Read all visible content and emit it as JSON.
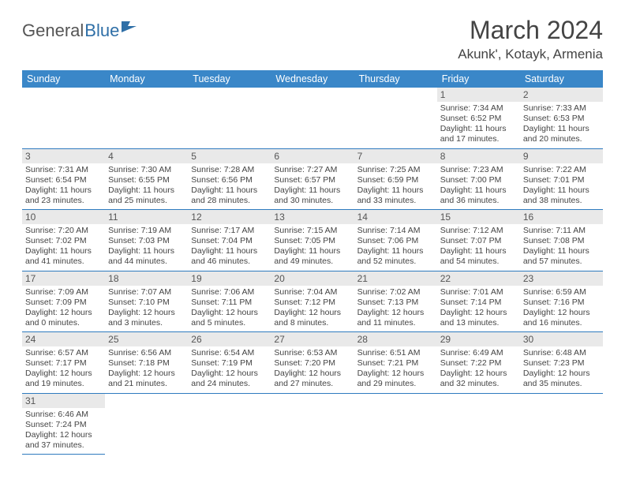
{
  "brand": {
    "general": "General",
    "blue": "Blue"
  },
  "title": "March 2024",
  "location": "Akunk', Kotayk, Armenia",
  "colors": {
    "header_bg": "#3a87c8",
    "header_text": "#ffffff",
    "row_border": "#2f7bbf",
    "day_strip": "#e9e9e9",
    "text": "#444444",
    "brand_gray": "#555555",
    "brand_blue": "#2f6fa7"
  },
  "weekdays": [
    "Sunday",
    "Monday",
    "Tuesday",
    "Wednesday",
    "Thursday",
    "Friday",
    "Saturday"
  ],
  "weeks": [
    [
      null,
      null,
      null,
      null,
      null,
      {
        "n": "1",
        "sr": "Sunrise: 7:34 AM",
        "ss": "Sunset: 6:52 PM",
        "dl1": "Daylight: 11 hours",
        "dl2": "and 17 minutes."
      },
      {
        "n": "2",
        "sr": "Sunrise: 7:33 AM",
        "ss": "Sunset: 6:53 PM",
        "dl1": "Daylight: 11 hours",
        "dl2": "and 20 minutes."
      }
    ],
    [
      {
        "n": "3",
        "sr": "Sunrise: 7:31 AM",
        "ss": "Sunset: 6:54 PM",
        "dl1": "Daylight: 11 hours",
        "dl2": "and 23 minutes."
      },
      {
        "n": "4",
        "sr": "Sunrise: 7:30 AM",
        "ss": "Sunset: 6:55 PM",
        "dl1": "Daylight: 11 hours",
        "dl2": "and 25 minutes."
      },
      {
        "n": "5",
        "sr": "Sunrise: 7:28 AM",
        "ss": "Sunset: 6:56 PM",
        "dl1": "Daylight: 11 hours",
        "dl2": "and 28 minutes."
      },
      {
        "n": "6",
        "sr": "Sunrise: 7:27 AM",
        "ss": "Sunset: 6:57 PM",
        "dl1": "Daylight: 11 hours",
        "dl2": "and 30 minutes."
      },
      {
        "n": "7",
        "sr": "Sunrise: 7:25 AM",
        "ss": "Sunset: 6:59 PM",
        "dl1": "Daylight: 11 hours",
        "dl2": "and 33 minutes."
      },
      {
        "n": "8",
        "sr": "Sunrise: 7:23 AM",
        "ss": "Sunset: 7:00 PM",
        "dl1": "Daylight: 11 hours",
        "dl2": "and 36 minutes."
      },
      {
        "n": "9",
        "sr": "Sunrise: 7:22 AM",
        "ss": "Sunset: 7:01 PM",
        "dl1": "Daylight: 11 hours",
        "dl2": "and 38 minutes."
      }
    ],
    [
      {
        "n": "10",
        "sr": "Sunrise: 7:20 AM",
        "ss": "Sunset: 7:02 PM",
        "dl1": "Daylight: 11 hours",
        "dl2": "and 41 minutes."
      },
      {
        "n": "11",
        "sr": "Sunrise: 7:19 AM",
        "ss": "Sunset: 7:03 PM",
        "dl1": "Daylight: 11 hours",
        "dl2": "and 44 minutes."
      },
      {
        "n": "12",
        "sr": "Sunrise: 7:17 AM",
        "ss": "Sunset: 7:04 PM",
        "dl1": "Daylight: 11 hours",
        "dl2": "and 46 minutes."
      },
      {
        "n": "13",
        "sr": "Sunrise: 7:15 AM",
        "ss": "Sunset: 7:05 PM",
        "dl1": "Daylight: 11 hours",
        "dl2": "and 49 minutes."
      },
      {
        "n": "14",
        "sr": "Sunrise: 7:14 AM",
        "ss": "Sunset: 7:06 PM",
        "dl1": "Daylight: 11 hours",
        "dl2": "and 52 minutes."
      },
      {
        "n": "15",
        "sr": "Sunrise: 7:12 AM",
        "ss": "Sunset: 7:07 PM",
        "dl1": "Daylight: 11 hours",
        "dl2": "and 54 minutes."
      },
      {
        "n": "16",
        "sr": "Sunrise: 7:11 AM",
        "ss": "Sunset: 7:08 PM",
        "dl1": "Daylight: 11 hours",
        "dl2": "and 57 minutes."
      }
    ],
    [
      {
        "n": "17",
        "sr": "Sunrise: 7:09 AM",
        "ss": "Sunset: 7:09 PM",
        "dl1": "Daylight: 12 hours",
        "dl2": "and 0 minutes."
      },
      {
        "n": "18",
        "sr": "Sunrise: 7:07 AM",
        "ss": "Sunset: 7:10 PM",
        "dl1": "Daylight: 12 hours",
        "dl2": "and 3 minutes."
      },
      {
        "n": "19",
        "sr": "Sunrise: 7:06 AM",
        "ss": "Sunset: 7:11 PM",
        "dl1": "Daylight: 12 hours",
        "dl2": "and 5 minutes."
      },
      {
        "n": "20",
        "sr": "Sunrise: 7:04 AM",
        "ss": "Sunset: 7:12 PM",
        "dl1": "Daylight: 12 hours",
        "dl2": "and 8 minutes."
      },
      {
        "n": "21",
        "sr": "Sunrise: 7:02 AM",
        "ss": "Sunset: 7:13 PM",
        "dl1": "Daylight: 12 hours",
        "dl2": "and 11 minutes."
      },
      {
        "n": "22",
        "sr": "Sunrise: 7:01 AM",
        "ss": "Sunset: 7:14 PM",
        "dl1": "Daylight: 12 hours",
        "dl2": "and 13 minutes."
      },
      {
        "n": "23",
        "sr": "Sunrise: 6:59 AM",
        "ss": "Sunset: 7:16 PM",
        "dl1": "Daylight: 12 hours",
        "dl2": "and 16 minutes."
      }
    ],
    [
      {
        "n": "24",
        "sr": "Sunrise: 6:57 AM",
        "ss": "Sunset: 7:17 PM",
        "dl1": "Daylight: 12 hours",
        "dl2": "and 19 minutes."
      },
      {
        "n": "25",
        "sr": "Sunrise: 6:56 AM",
        "ss": "Sunset: 7:18 PM",
        "dl1": "Daylight: 12 hours",
        "dl2": "and 21 minutes."
      },
      {
        "n": "26",
        "sr": "Sunrise: 6:54 AM",
        "ss": "Sunset: 7:19 PM",
        "dl1": "Daylight: 12 hours",
        "dl2": "and 24 minutes."
      },
      {
        "n": "27",
        "sr": "Sunrise: 6:53 AM",
        "ss": "Sunset: 7:20 PM",
        "dl1": "Daylight: 12 hours",
        "dl2": "and 27 minutes."
      },
      {
        "n": "28",
        "sr": "Sunrise: 6:51 AM",
        "ss": "Sunset: 7:21 PM",
        "dl1": "Daylight: 12 hours",
        "dl2": "and 29 minutes."
      },
      {
        "n": "29",
        "sr": "Sunrise: 6:49 AM",
        "ss": "Sunset: 7:22 PM",
        "dl1": "Daylight: 12 hours",
        "dl2": "and 32 minutes."
      },
      {
        "n": "30",
        "sr": "Sunrise: 6:48 AM",
        "ss": "Sunset: 7:23 PM",
        "dl1": "Daylight: 12 hours",
        "dl2": "and 35 minutes."
      }
    ],
    [
      {
        "n": "31",
        "sr": "Sunrise: 6:46 AM",
        "ss": "Sunset: 7:24 PM",
        "dl1": "Daylight: 12 hours",
        "dl2": "and 37 minutes."
      },
      null,
      null,
      null,
      null,
      null,
      null
    ]
  ]
}
